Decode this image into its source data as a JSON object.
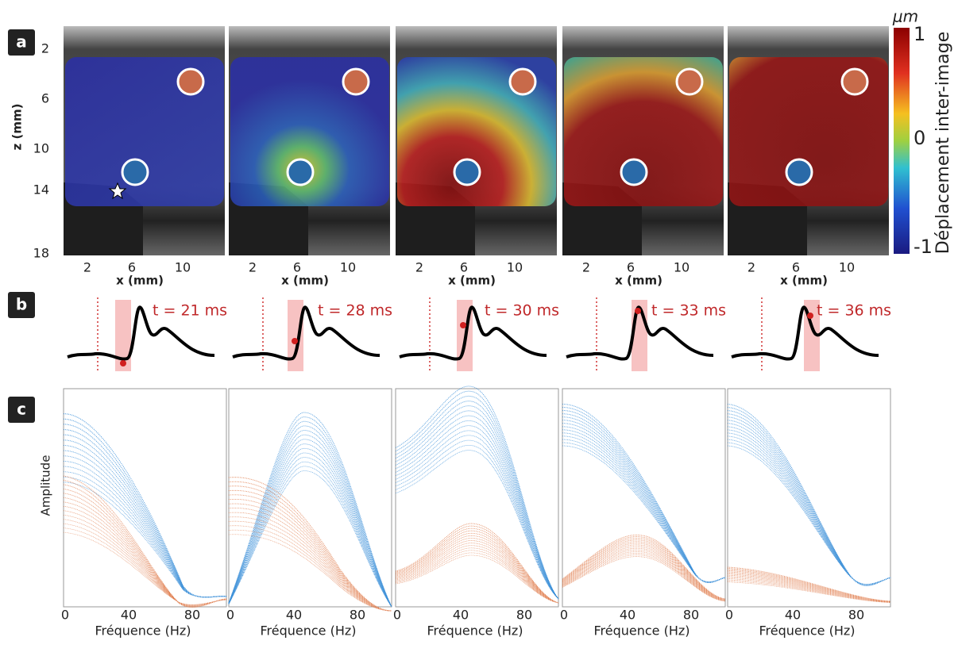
{
  "panel_labels": [
    "a",
    "b",
    "c"
  ],
  "row_a": {
    "z_label": "z (mm)",
    "z_ticks": [
      "2",
      "6",
      "10",
      "14",
      "18"
    ],
    "x_label": "x (mm)",
    "x_ticks": [
      "2",
      "6",
      "10"
    ]
  },
  "colorbar": {
    "unit": "μm",
    "title": "Déplacement inter-image",
    "ticks": [
      "1",
      "0",
      "-1"
    ]
  },
  "row_b": {
    "times": [
      "t = 21 ms",
      "t = 28 ms",
      "t = 30 ms",
      "t = 33 ms",
      "t = 36 ms"
    ]
  },
  "row_c": {
    "y_label": "Amplitude",
    "x_label": "Fréquence (Hz)",
    "x_ticks": [
      "0",
      "40",
      "80"
    ]
  }
}
